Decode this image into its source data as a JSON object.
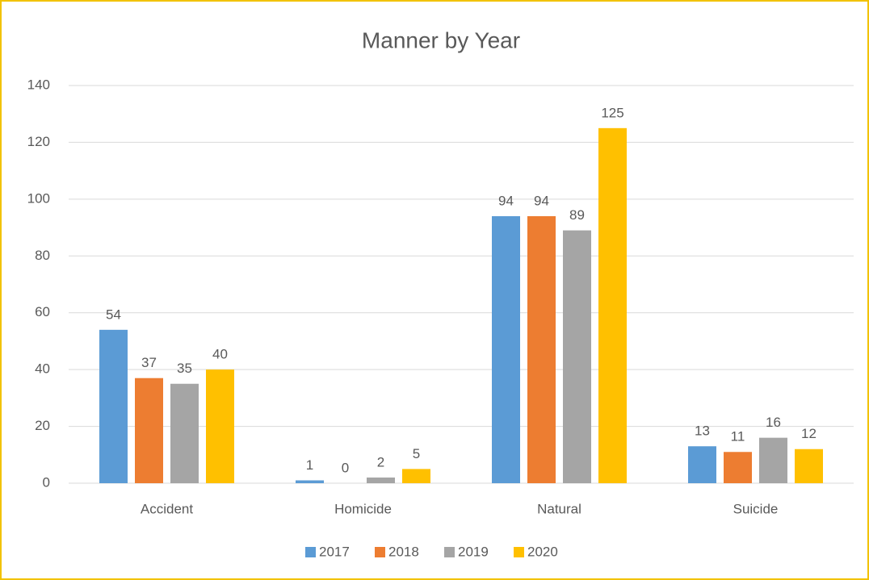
{
  "chart_data": {
    "type": "bar",
    "title": "Manner by Year",
    "categories": [
      "Accident",
      "Homicide",
      "Natural",
      "Suicide"
    ],
    "series": [
      {
        "name": "2017",
        "color": "#5b9bd5",
        "values": [
          54,
          1,
          94,
          13
        ]
      },
      {
        "name": "2018",
        "color": "#ed7d31",
        "values": [
          37,
          0,
          94,
          11
        ]
      },
      {
        "name": "2019",
        "color": "#a5a5a5",
        "values": [
          35,
          2,
          89,
          16
        ]
      },
      {
        "name": "2020",
        "color": "#ffc000",
        "values": [
          40,
          5,
          125,
          12
        ]
      }
    ],
    "ylim": [
      0,
      140
    ],
    "yticks": [
      0,
      20,
      40,
      60,
      80,
      100,
      120,
      140
    ],
    "grid": true,
    "legend": "bottom",
    "data_labels": true
  }
}
